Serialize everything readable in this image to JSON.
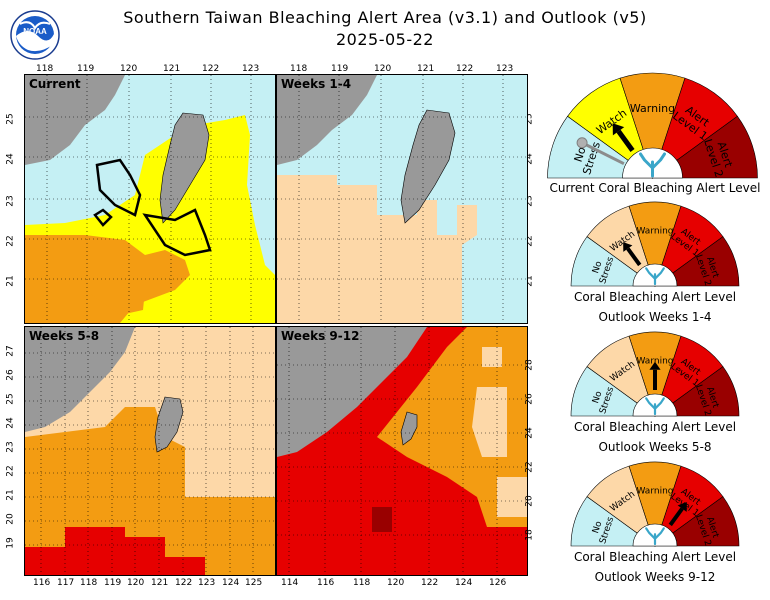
{
  "header": {
    "title": "Southern Taiwan Bleaching Alert Area (v3.1) and Outlook (v5)",
    "date": "2025-05-22",
    "logo_text": "NOAA"
  },
  "colors": {
    "ocean_no_stress": "#c5f0f4",
    "watch": "#ffff00",
    "watch_light": "#fdd8a8",
    "warning": "#f39c12",
    "alert1": "#e60000",
    "alert2": "#990000",
    "land": "#999999"
  },
  "panels": [
    {
      "label": "Current",
      "top_ticks": [
        "118",
        "119",
        "120",
        "121",
        "122",
        "123"
      ],
      "left_ticks": [
        "25",
        "24",
        "23",
        "22",
        "21"
      ]
    },
    {
      "label": "Weeks 1-4",
      "top_ticks": [
        "118",
        "119",
        "120",
        "121",
        "122",
        "123"
      ],
      "right_ticks": [
        "25",
        "24",
        "23",
        "22",
        "21"
      ]
    },
    {
      "label": "Weeks 5-8",
      "bottom_ticks": [
        "116",
        "117",
        "118",
        "119",
        "120",
        "121",
        "122",
        "123",
        "124",
        "125"
      ],
      "left_ticks": [
        "27",
        "26",
        "25",
        "24",
        "23",
        "22",
        "21",
        "20",
        "19"
      ]
    },
    {
      "label": "Weeks 9-12",
      "bottom_ticks": [
        "114",
        "116",
        "118",
        "120",
        "122",
        "124",
        "126"
      ],
      "right_ticks": [
        "28",
        "26",
        "24",
        "22",
        "20",
        "18"
      ]
    }
  ],
  "gauges": [
    {
      "labels": {
        "no_stress": "No Stress",
        "watch": "Watch",
        "warning": "Warning",
        "alert1": "Alert Level 1",
        "alert2": "Alert Level 2"
      },
      "needle": "watch",
      "caption_line1": "Current Coral Bleaching Alert Level",
      "caption_line2": ""
    },
    {
      "labels": {
        "no_stress": "No Stress",
        "watch": "Watch",
        "warning": "Warning",
        "alert1": "Alert Level 1",
        "alert2": "Alert Level 2"
      },
      "needle": "watch",
      "caption_line1": "Coral Bleaching Alert Level",
      "caption_line2": "Outlook Weeks 1-4"
    },
    {
      "labels": {
        "no_stress": "No Stress",
        "watch": "Watch",
        "warning": "Warning",
        "alert1": "Alert Level 1",
        "alert2": "Alert Level 2"
      },
      "needle": "warning",
      "caption_line1": "Coral Bleaching Alert Level",
      "caption_line2": "Outlook Weeks 5-8"
    },
    {
      "labels": {
        "no_stress": "No Stress",
        "watch": "Watch",
        "warning": "Warning",
        "alert1": "Alert Level 1",
        "alert2": "Alert Level 2"
      },
      "needle": "alert1",
      "caption_line1": "Coral Bleaching Alert Level",
      "caption_line2": "Outlook Weeks 9-12"
    }
  ]
}
